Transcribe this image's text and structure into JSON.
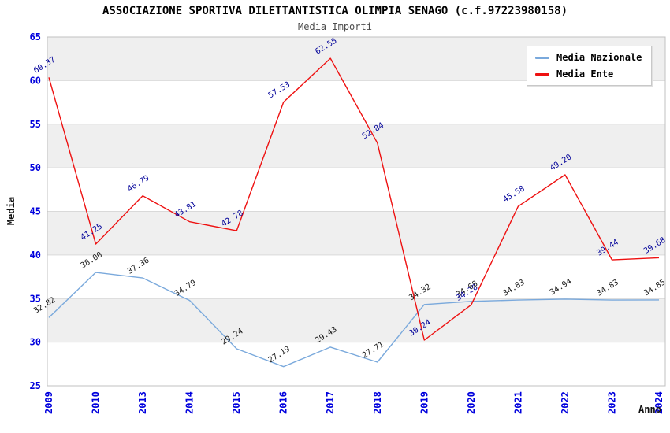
{
  "title": "ASSOCIAZIONE SPORTIVA DILETTANTISTICA OLIMPIA SENAGO (c.f.97223980158)",
  "subtitle": "Media Importi",
  "axes": {
    "x_title": "Anno",
    "y_title": "Media"
  },
  "colors": {
    "tick_label": "#0000dd",
    "grid_line": "#d9d9d9",
    "band_fill": "#efefef",
    "plot_border": "#c0c0c0",
    "nazionale_line": "#7aa9dc",
    "ente_line": "#ee1111",
    "nazionale_data_label": "#1a1a1a",
    "ente_data_label": "#000099"
  },
  "chart_data": {
    "type": "line",
    "title": "ASSOCIAZIONE SPORTIVA DILETTANTISTICA OLIMPIA SENAGO (c.f.97223980158)",
    "subtitle": "Media Importi",
    "xlabel": "Anno",
    "ylabel": "Media",
    "ylim": [
      25,
      65
    ],
    "ytick_step": 5,
    "yticks": [
      25,
      30,
      35,
      40,
      45,
      50,
      55,
      60,
      65
    ],
    "grid": true,
    "alternating_bands": true,
    "legend_position": "top-right",
    "categories": [
      "2009",
      "2010",
      "2013",
      "2014",
      "2015",
      "2016",
      "2017",
      "2018",
      "2019",
      "2020",
      "2021",
      "2022",
      "2023",
      "2024"
    ],
    "series": [
      {
        "name": "Media Nazionale",
        "color": "#7aa9dc",
        "label_color": "#1a1a1a",
        "values": [
          32.82,
          38.0,
          37.36,
          34.79,
          29.24,
          27.19,
          29.43,
          27.71,
          34.32,
          34.68,
          34.83,
          34.94,
          34.83,
          34.85
        ]
      },
      {
        "name": "Media Ente",
        "color": "#ee1111",
        "label_color": "#000099",
        "values": [
          60.37,
          41.25,
          46.79,
          43.81,
          42.78,
          57.53,
          62.55,
          52.84,
          30.24,
          34.28,
          45.58,
          49.2,
          39.44,
          39.68
        ]
      }
    ]
  }
}
